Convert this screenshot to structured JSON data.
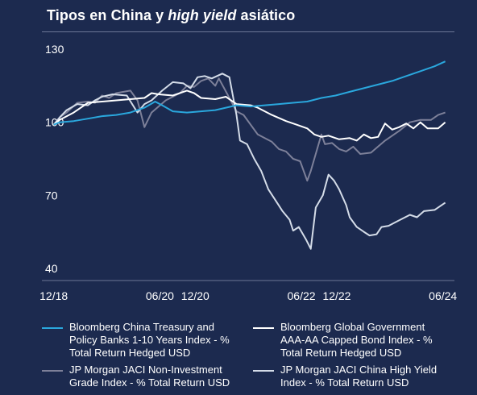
{
  "title_parts": [
    "Tipos en China y ",
    "high yield",
    " asiático"
  ],
  "colors": {
    "background": "#1c2a4f",
    "treasury": "#2aa7dd",
    "government": "#ffffff",
    "non_ig": "#7d8099",
    "high_yield": "#d4dce8"
  },
  "chart_data": {
    "type": "line",
    "title": "Tipos en China y high yield asiático",
    "ylim": [
      35,
      135
    ],
    "y_ticks": [
      40,
      70,
      100,
      130
    ],
    "x_range": [
      2018.75,
      2024.58
    ],
    "x_ticks": [
      {
        "label": "12/18",
        "x": 2018.917
      },
      {
        "label": "06/20",
        "x": 2020.417
      },
      {
        "label": "12/20",
        "x": 2020.917
      },
      {
        "label": "06/22",
        "x": 2022.417
      },
      {
        "label": "12/22",
        "x": 2022.917
      },
      {
        "label": "06/24",
        "x": 2024.417
      }
    ],
    "grid": false,
    "legend_position": "bottom",
    "series": [
      {
        "name": "Bloomberg China Treasury and Policy Banks 1-10 Years Index - % Total Return Hedged USD",
        "color_key": "treasury",
        "points": [
          [
            2018.917,
            99
          ],
          [
            2019.0,
            100
          ],
          [
            2019.2,
            100.5
          ],
          [
            2019.4,
            101.5
          ],
          [
            2019.6,
            102.5
          ],
          [
            2019.8,
            103
          ],
          [
            2020.0,
            104
          ],
          [
            2020.2,
            106
          ],
          [
            2020.35,
            108.5
          ],
          [
            2020.45,
            107
          ],
          [
            2020.6,
            104.5
          ],
          [
            2020.8,
            104
          ],
          [
            2021.0,
            104.5
          ],
          [
            2021.2,
            105
          ],
          [
            2021.35,
            106
          ],
          [
            2021.5,
            107
          ],
          [
            2021.7,
            106.5
          ],
          [
            2021.9,
            107
          ],
          [
            2022.1,
            107.5
          ],
          [
            2022.3,
            108
          ],
          [
            2022.5,
            108.5
          ],
          [
            2022.7,
            110
          ],
          [
            2022.9,
            111
          ],
          [
            2023.1,
            112.5
          ],
          [
            2023.3,
            114
          ],
          [
            2023.5,
            115.5
          ],
          [
            2023.7,
            117
          ],
          [
            2023.9,
            119
          ],
          [
            2024.1,
            121
          ],
          [
            2024.3,
            123
          ],
          [
            2024.45,
            125
          ]
        ]
      },
      {
        "name": "Bloomberg Global Government AAA-AA Capped Bond Index - % Total Return Hedged USD",
        "color_key": "government",
        "points": [
          [
            2018.917,
            99
          ],
          [
            2019.0,
            101
          ],
          [
            2019.2,
            104
          ],
          [
            2019.4,
            108
          ],
          [
            2019.6,
            108.5
          ],
          [
            2019.8,
            109
          ],
          [
            2020.0,
            109.5
          ],
          [
            2020.2,
            110
          ],
          [
            2020.3,
            112
          ],
          [
            2020.4,
            111.5
          ],
          [
            2020.6,
            111
          ],
          [
            2020.8,
            113
          ],
          [
            2020.9,
            112
          ],
          [
            2021.0,
            110
          ],
          [
            2021.2,
            109.5
          ],
          [
            2021.35,
            110.5
          ],
          [
            2021.5,
            107.5
          ],
          [
            2021.7,
            107
          ],
          [
            2021.8,
            106
          ],
          [
            2022.0,
            103
          ],
          [
            2022.2,
            100.5
          ],
          [
            2022.35,
            99
          ],
          [
            2022.5,
            97.5
          ],
          [
            2022.6,
            95
          ],
          [
            2022.7,
            94
          ],
          [
            2022.8,
            94.5
          ],
          [
            2022.95,
            93
          ],
          [
            2023.1,
            93.5
          ],
          [
            2023.2,
            92.5
          ],
          [
            2023.3,
            95
          ],
          [
            2023.4,
            93.5
          ],
          [
            2023.5,
            94
          ],
          [
            2023.6,
            99.5
          ],
          [
            2023.7,
            97
          ],
          [
            2023.8,
            98
          ],
          [
            2023.9,
            99.5
          ],
          [
            2024.0,
            97.5
          ],
          [
            2024.1,
            100
          ],
          [
            2024.2,
            97.5
          ],
          [
            2024.35,
            97.5
          ],
          [
            2024.45,
            100
          ]
        ]
      },
      {
        "name": "JP Morgan JACI Non-Investment Grade Index - % Total Return USD",
        "color_key": "non_ig",
        "points": [
          [
            2018.917,
            99
          ],
          [
            2019.0,
            102
          ],
          [
            2019.1,
            104
          ],
          [
            2019.25,
            108
          ],
          [
            2019.4,
            108.5
          ],
          [
            2019.5,
            108
          ],
          [
            2019.6,
            111
          ],
          [
            2019.7,
            110
          ],
          [
            2019.8,
            112
          ],
          [
            2020.0,
            113
          ],
          [
            2020.1,
            109
          ],
          [
            2020.2,
            98
          ],
          [
            2020.3,
            104
          ],
          [
            2020.5,
            109
          ],
          [
            2020.7,
            112
          ],
          [
            2020.8,
            115
          ],
          [
            2020.9,
            114.5
          ],
          [
            2021.0,
            117
          ],
          [
            2021.1,
            118
          ],
          [
            2021.2,
            115
          ],
          [
            2021.25,
            118
          ],
          [
            2021.4,
            110
          ],
          [
            2021.5,
            104.5
          ],
          [
            2021.6,
            103
          ],
          [
            2021.8,
            95
          ],
          [
            2022.0,
            92
          ],
          [
            2022.1,
            89
          ],
          [
            2022.2,
            88
          ],
          [
            2022.3,
            85
          ],
          [
            2022.4,
            84
          ],
          [
            2022.5,
            76
          ],
          [
            2022.55,
            80
          ],
          [
            2022.6,
            85
          ],
          [
            2022.7,
            95
          ],
          [
            2022.75,
            91
          ],
          [
            2022.85,
            91.5
          ],
          [
            2022.95,
            89
          ],
          [
            2023.05,
            88
          ],
          [
            2023.15,
            90
          ],
          [
            2023.25,
            87
          ],
          [
            2023.4,
            87.5
          ],
          [
            2023.6,
            92.5
          ],
          [
            2023.8,
            96.5
          ],
          [
            2023.95,
            100
          ],
          [
            2024.1,
            101
          ],
          [
            2024.25,
            101
          ],
          [
            2024.35,
            103
          ],
          [
            2024.45,
            104
          ]
        ]
      },
      {
        "name": "JP Morgan JACI China High Yield Index - % Total Return USD",
        "color_key": "high_yield",
        "points": [
          [
            2018.917,
            99
          ],
          [
            2019.0,
            102
          ],
          [
            2019.1,
            105
          ],
          [
            2019.25,
            107.5
          ],
          [
            2019.4,
            107
          ],
          [
            2019.5,
            109
          ],
          [
            2019.6,
            110.5
          ],
          [
            2019.75,
            111.5
          ],
          [
            2019.95,
            111
          ],
          [
            2020.1,
            104
          ],
          [
            2020.2,
            107.5
          ],
          [
            2020.3,
            109
          ],
          [
            2020.45,
            113
          ],
          [
            2020.6,
            116.5
          ],
          [
            2020.75,
            116
          ],
          [
            2020.85,
            114
          ],
          [
            2020.95,
            118.5
          ],
          [
            2021.05,
            119
          ],
          [
            2021.15,
            118
          ],
          [
            2021.3,
            120
          ],
          [
            2021.4,
            118.5
          ],
          [
            2021.5,
            103
          ],
          [
            2021.55,
            92.5
          ],
          [
            2021.65,
            91
          ],
          [
            2021.75,
            85
          ],
          [
            2021.85,
            80
          ],
          [
            2021.95,
            72.5
          ],
          [
            2022.05,
            68
          ],
          [
            2022.15,
            63.5
          ],
          [
            2022.25,
            60
          ],
          [
            2022.3,
            55.5
          ],
          [
            2022.38,
            57
          ],
          [
            2022.48,
            52
          ],
          [
            2022.55,
            48
          ],
          [
            2022.62,
            65
          ],
          [
            2022.72,
            70
          ],
          [
            2022.8,
            78.5
          ],
          [
            2022.88,
            76
          ],
          [
            2022.95,
            72.5
          ],
          [
            2023.05,
            66
          ],
          [
            2023.1,
            61
          ],
          [
            2023.2,
            57
          ],
          [
            2023.3,
            55
          ],
          [
            2023.38,
            53.5
          ],
          [
            2023.48,
            54
          ],
          [
            2023.55,
            57
          ],
          [
            2023.65,
            57.5
          ],
          [
            2023.75,
            59
          ],
          [
            2023.85,
            60.5
          ],
          [
            2023.95,
            62
          ],
          [
            2024.05,
            61
          ],
          [
            2024.15,
            63.5
          ],
          [
            2024.3,
            64
          ],
          [
            2024.45,
            67
          ]
        ]
      }
    ]
  },
  "legend": [
    {
      "label": "Bloomberg China Treasury and\nPolicy Banks 1-10 Years Index - %\nTotal Return Hedged USD",
      "color_key": "treasury"
    },
    {
      "label": "Bloomberg Global Government\nAAA-AA Capped Bond Index - %\nTotal Return Hedged USD",
      "color_key": "government"
    },
    {
      "label": "JP Morgan JACI Non-Investment\nGrade Index - % Total Return USD",
      "color_key": "non_ig"
    },
    {
      "label": "JP Morgan JACI China High Yield\nIndex - % Total Return USD",
      "color_key": "high_yield"
    }
  ]
}
